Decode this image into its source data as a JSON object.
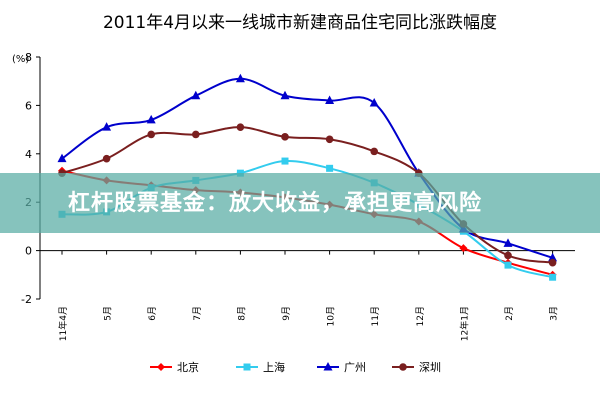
{
  "chart_data": {
    "type": "line",
    "title": "2011年4月以来一线城市新建商品住宅同比涨跌幅度",
    "ylabel": "(%)",
    "ylim": [
      -2,
      8
    ],
    "yticks": [
      -2,
      0,
      2,
      4,
      6,
      8
    ],
    "grid": false,
    "legend_position": "bottom",
    "categories": [
      "11年4月",
      "5月",
      "6月",
      "7月",
      "8月",
      "9月",
      "10月",
      "11月",
      "12月",
      "12年1月",
      "2月",
      "3月"
    ],
    "series": [
      {
        "name": "北京",
        "color": "#ff0000",
        "marker": "diamond",
        "values": [
          3.3,
          2.9,
          2.7,
          2.5,
          2.4,
          2.2,
          1.9,
          1.5,
          1.2,
          0.1,
          -0.5,
          -1.0
        ]
      },
      {
        "name": "上海",
        "color": "#33ccee",
        "marker": "square",
        "values": [
          1.5,
          1.6,
          2.6,
          2.9,
          3.2,
          3.7,
          3.4,
          2.8,
          1.9,
          0.8,
          -0.6,
          -1.1
        ]
      },
      {
        "name": "广州",
        "color": "#0000cc",
        "marker": "triangle",
        "values": [
          3.8,
          5.1,
          5.4,
          6.4,
          7.1,
          6.4,
          6.2,
          6.1,
          3.2,
          0.9,
          0.3,
          -0.3
        ]
      },
      {
        "name": "深圳",
        "color": "#7a1f1f",
        "marker": "circle",
        "values": [
          3.2,
          3.8,
          4.8,
          4.8,
          5.1,
          4.7,
          4.6,
          4.1,
          3.2,
          1.1,
          -0.2,
          -0.5
        ]
      }
    ]
  },
  "overlay": {
    "banner_text": "杠杆股票基金：放大收益，承担更高风险"
  }
}
